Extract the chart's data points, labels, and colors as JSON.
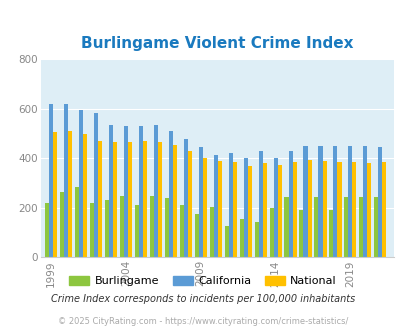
{
  "title": "Burlingame Violent Crime Index",
  "years": [
    1999,
    2000,
    2001,
    2002,
    2003,
    2004,
    2005,
    2006,
    2007,
    2008,
    2009,
    2010,
    2011,
    2012,
    2013,
    2014,
    2015,
    2016,
    2017,
    2018,
    2019,
    2020,
    2021
  ],
  "burlingame": [
    220,
    265,
    285,
    220,
    230,
    250,
    210,
    250,
    240,
    210,
    175,
    205,
    125,
    155,
    145,
    200,
    245,
    190,
    245,
    190,
    245,
    245,
    245
  ],
  "california": [
    620,
    620,
    595,
    585,
    535,
    530,
    530,
    535,
    510,
    480,
    445,
    415,
    420,
    400,
    430,
    400,
    430,
    450,
    450,
    450,
    450,
    450,
    445
  ],
  "national": [
    505,
    510,
    500,
    470,
    465,
    465,
    470,
    465,
    455,
    430,
    400,
    390,
    385,
    370,
    380,
    375,
    385,
    395,
    390,
    385,
    385,
    380,
    385
  ],
  "xtick_years": [
    1999,
    2004,
    2009,
    2014,
    2019
  ],
  "xtick_labels": [
    "1999",
    "2004",
    "2009",
    "2014",
    "2019"
  ],
  "ylim": [
    0,
    800
  ],
  "yticks": [
    0,
    200,
    400,
    600,
    800
  ],
  "color_burlingame": "#8dc63f",
  "color_california": "#5b9bd5",
  "color_national": "#ffc000",
  "bg_color": "#deeef6",
  "title_color": "#1a7abf",
  "footer1": "Crime Index corresponds to incidents per 100,000 inhabitants",
  "footer2": "© 2025 CityRating.com - https://www.cityrating.com/crime-statistics/",
  "bar_width": 0.27,
  "legend_labels": [
    "Burlingame",
    "California",
    "National"
  ]
}
